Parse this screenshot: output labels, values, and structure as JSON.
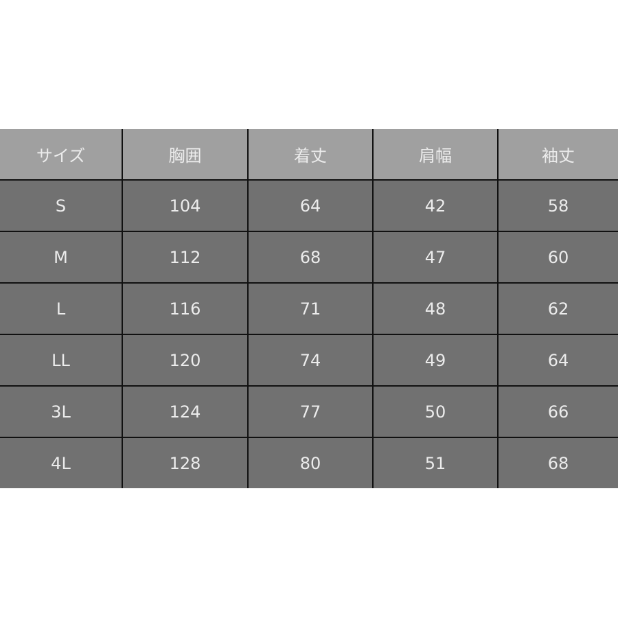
{
  "table": {
    "headers": [
      "サイズ",
      "胸囲",
      "着丈",
      "肩幅",
      "袖丈"
    ],
    "rows": [
      [
        "S",
        "104",
        "64",
        "42",
        "58"
      ],
      [
        "M",
        "112",
        "68",
        "47",
        "60"
      ],
      [
        "L",
        "116",
        "71",
        "48",
        "62"
      ],
      [
        "LL",
        "120",
        "74",
        "49",
        "64"
      ],
      [
        "3L",
        "124",
        "77",
        "50",
        "66"
      ],
      [
        "4L",
        "128",
        "80",
        "51",
        "68"
      ]
    ]
  },
  "colors": {
    "header_bg": "#a0a0a0",
    "body_bg": "#717171",
    "border": "#111111",
    "text": "#ececec"
  }
}
